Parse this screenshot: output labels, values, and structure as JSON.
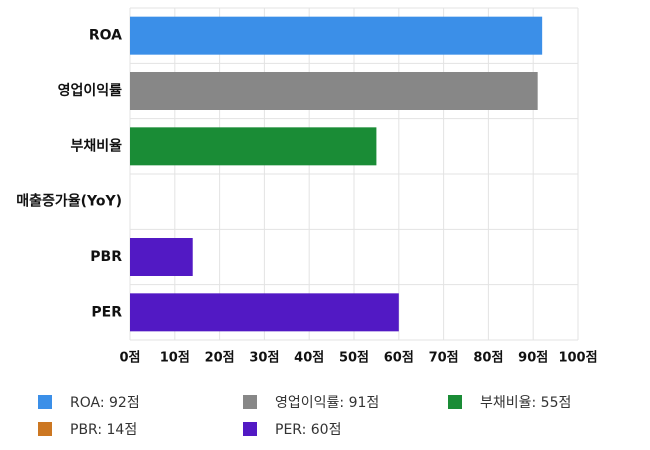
{
  "chart_data": {
    "type": "bar",
    "orientation": "horizontal",
    "categories": [
      "ROA",
      "영업이익률",
      "부채비율",
      "매출증가율(YoY)",
      "PBR",
      "PER"
    ],
    "values": [
      92,
      91,
      55,
      0,
      14,
      60
    ],
    "colors": [
      "#3b8fe8",
      "#878787",
      "#1a8c36",
      "#cc7722",
      "#5219c4",
      "#5219c4"
    ],
    "xlim": [
      0,
      100
    ],
    "xticks": [
      0,
      10,
      20,
      30,
      40,
      50,
      60,
      70,
      80,
      90,
      100
    ],
    "tick_suffix": "점",
    "grid": true,
    "legend_position": "bottom",
    "legend": [
      {
        "label": "ROA: 92점",
        "color": "#3b8fe8"
      },
      {
        "label": "영업이익률: 91점",
        "color": "#878787"
      },
      {
        "label": "부채비율: 55점",
        "color": "#1a8c36"
      },
      {
        "label": "PBR: 14점",
        "color": "#cc7722"
      },
      {
        "label": "PER: 60점",
        "color": "#5219c4"
      }
    ]
  }
}
